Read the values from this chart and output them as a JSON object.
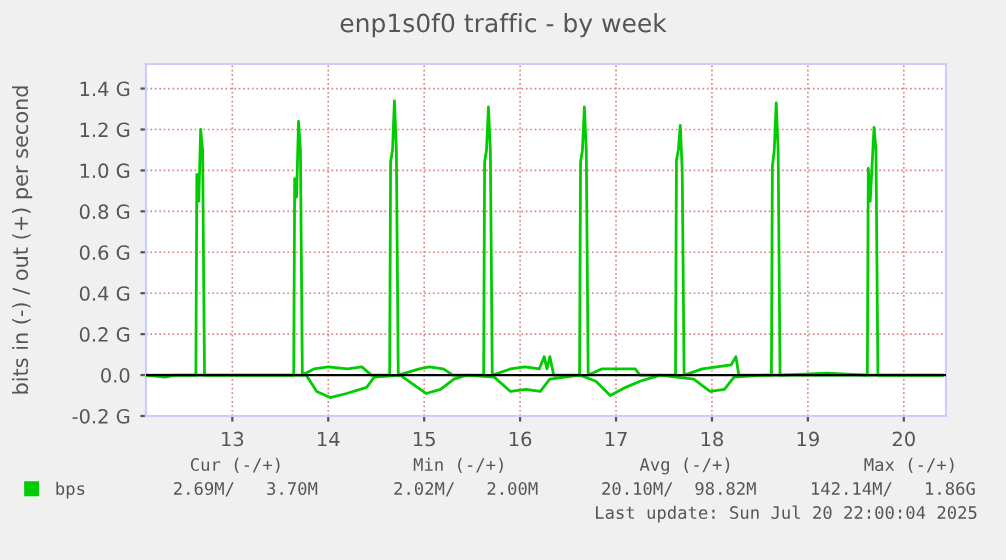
{
  "chart_data": {
    "type": "line",
    "title": "enp1s0f0 traffic - by week",
    "ylabel": "bits in (-) / out (+) per second",
    "xlim": [
      12.1,
      20.44
    ],
    "ylim": [
      -0.2,
      1.52
    ],
    "xticks": [
      13,
      14,
      15,
      16,
      17,
      18,
      19,
      20
    ],
    "yticks": [
      {
        "value": -0.2,
        "label": "-0.2 G"
      },
      {
        "value": 0,
        "label": "0.0"
      },
      {
        "value": 0.2,
        "label": "0.2 G"
      },
      {
        "value": 0.4,
        "label": "0.4 G"
      },
      {
        "value": 0.6,
        "label": "0.6 G"
      },
      {
        "value": 0.8,
        "label": "0.8 G"
      },
      {
        "value": 1.0,
        "label": "1.0 G"
      },
      {
        "value": 1.2,
        "label": "1.2 G"
      },
      {
        "value": 1.4,
        "label": "1.4 G"
      }
    ],
    "grid": true,
    "legend": "bottom",
    "marker": "none",
    "line_style": "solid",
    "ref_lines": [
      {
        "axis": "y",
        "value": 0,
        "color": "#000000"
      }
    ],
    "series": [
      {
        "name": "bps",
        "color": "#00cc00",
        "x": [
          12.1,
          12.62,
          12.63,
          12.65,
          12.67,
          12.69,
          12.71,
          13.3,
          13.64,
          13.65,
          13.67,
          13.69,
          13.71,
          13.73,
          13.85,
          14.0,
          14.2,
          14.35,
          14.45,
          14.64,
          14.65,
          14.67,
          14.69,
          14.71,
          14.73,
          14.95,
          15.05,
          15.2,
          15.3,
          15.62,
          15.63,
          15.65,
          15.67,
          15.69,
          15.71,
          15.9,
          16.05,
          16.2,
          16.25,
          16.28,
          16.31,
          16.35,
          16.62,
          16.63,
          16.65,
          16.67,
          16.69,
          16.71,
          16.85,
          17.0,
          17.2,
          17.25,
          17.62,
          17.63,
          17.65,
          17.67,
          17.69,
          17.71,
          17.9,
          18.05,
          18.2,
          18.25,
          18.28,
          18.62,
          18.63,
          18.65,
          18.67,
          18.69,
          18.71,
          19.2,
          19.62,
          19.63,
          19.65,
          19.69,
          19.71,
          19.73,
          20.4
        ],
        "values": [
          0,
          0,
          0.98,
          0.85,
          1.2,
          1.1,
          0,
          0,
          0,
          0.96,
          0.87,
          1.24,
          1.1,
          0,
          0.03,
          0.04,
          0.03,
          0.04,
          0,
          0,
          1.04,
          1.1,
          1.34,
          1.1,
          0,
          0.03,
          0.04,
          0.03,
          0,
          0,
          1.04,
          1.1,
          1.31,
          1.1,
          0,
          0.03,
          0.04,
          0.03,
          0.09,
          0.03,
          0.09,
          0,
          0,
          1.04,
          1.1,
          1.31,
          1.1,
          0,
          0.03,
          0.03,
          0.03,
          0,
          0,
          1.05,
          1.1,
          1.22,
          1.0,
          0,
          0.03,
          0.04,
          0.05,
          0.09,
          0,
          0,
          1.02,
          1.1,
          1.33,
          1.1,
          0,
          0.01,
          0,
          1.01,
          0.85,
          1.21,
          1.1,
          0,
          0
        ]
      },
      {
        "color": "#00cc00",
        "x": [
          12.1,
          12.3,
          12.4,
          13.77,
          13.88,
          14.02,
          14.19,
          14.4,
          14.48,
          14.75,
          14.9,
          15.02,
          15.17,
          15.31,
          15.44,
          15.73,
          15.9,
          16.06,
          16.21,
          16.31,
          16.62,
          16.79,
          16.94,
          17.1,
          17.25,
          17.46,
          17.81,
          17.98,
          18.13,
          18.23,
          18.56,
          20.4
        ],
        "values": [
          0,
          -0.01,
          0,
          0,
          -0.08,
          -0.11,
          -0.09,
          -0.06,
          -0.01,
          0,
          -0.05,
          -0.09,
          -0.07,
          -0.02,
          0,
          -0.01,
          -0.08,
          -0.07,
          -0.08,
          -0.02,
          0,
          -0.03,
          -0.1,
          -0.06,
          -0.03,
          0,
          -0.02,
          -0.08,
          -0.07,
          -0.01,
          0,
          0
        ]
      }
    ],
    "annotations": [
      "Cur (-/+)",
      "Min (-/+)",
      "Avg (-/+)",
      "Max (-/+)",
      "2.69M/   3.70M",
      "2.02M/   2.00M",
      "20.10M/  98.82M",
      "142.14M/   1.86G",
      "Last update: Sun Jul 20 22:00:04 2025"
    ]
  }
}
